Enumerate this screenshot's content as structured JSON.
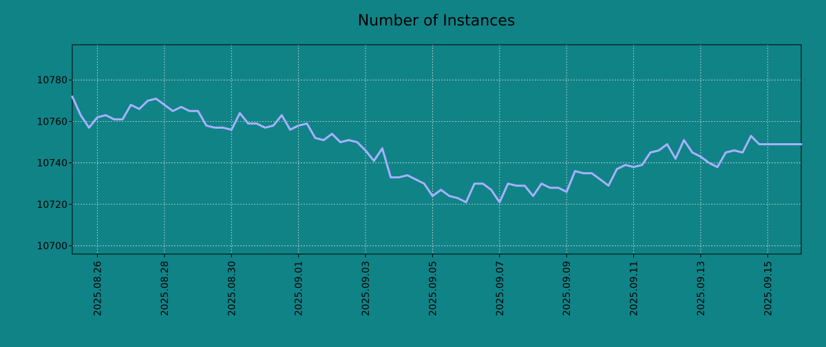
{
  "colors": {
    "background": "#108387",
    "line": "#a7b1ff",
    "grid": "#cfd6d6",
    "axis": "#000000"
  },
  "chart_data": {
    "type": "line",
    "title": "Number of Instances",
    "xlabel": "",
    "ylabel": "",
    "x_type": "date",
    "x_tick_labels": [
      "2025.08.26",
      "2025.08.28",
      "2025.08.30",
      "2025.09.01",
      "2025.09.03",
      "2025.09.05",
      "2025.09.07",
      "2025.09.09",
      "2025.09.11",
      "2025.09.13",
      "2025.09.15"
    ],
    "y_tick_labels": [
      "10700",
      "10720",
      "10740",
      "10760",
      "10780"
    ],
    "xlim": [
      "2025-08-25 06:00",
      "2025-09-16 00:00"
    ],
    "ylim": [
      10696,
      10797
    ],
    "grid": true,
    "legend": "none",
    "series": [
      {
        "x": [
          "2025-08-25 06:00",
          "2025-08-25 12:00",
          "2025-08-25 18:00",
          "2025-08-26 00:00",
          "2025-08-26 06:00",
          "2025-08-26 12:00",
          "2025-08-26 18:00",
          "2025-08-27 00:00",
          "2025-08-27 06:00",
          "2025-08-27 12:00",
          "2025-08-27 18:00",
          "2025-08-28 00:00",
          "2025-08-28 06:00",
          "2025-08-28 12:00",
          "2025-08-28 18:00",
          "2025-08-29 00:00",
          "2025-08-29 06:00",
          "2025-08-29 12:00",
          "2025-08-29 18:00",
          "2025-08-30 00:00",
          "2025-08-30 06:00",
          "2025-08-30 12:00",
          "2025-08-30 18:00",
          "2025-08-31 00:00",
          "2025-08-31 06:00",
          "2025-08-31 12:00",
          "2025-08-31 18:00",
          "2025-09-01 00:00",
          "2025-09-01 06:00",
          "2025-09-01 12:00",
          "2025-09-01 18:00",
          "2025-09-02 00:00",
          "2025-09-02 06:00",
          "2025-09-02 12:00",
          "2025-09-02 18:00",
          "2025-09-03 00:00",
          "2025-09-03 06:00",
          "2025-09-03 12:00",
          "2025-09-03 18:00",
          "2025-09-04 00:00",
          "2025-09-04 06:00",
          "2025-09-04 12:00",
          "2025-09-04 18:00",
          "2025-09-05 00:00",
          "2025-09-05 06:00",
          "2025-09-05 12:00",
          "2025-09-05 18:00",
          "2025-09-06 00:00",
          "2025-09-06 06:00",
          "2025-09-06 12:00",
          "2025-09-06 18:00",
          "2025-09-07 00:00",
          "2025-09-07 06:00",
          "2025-09-07 12:00",
          "2025-09-07 18:00",
          "2025-09-08 00:00",
          "2025-09-08 06:00",
          "2025-09-08 12:00",
          "2025-09-08 18:00",
          "2025-09-09 00:00",
          "2025-09-09 06:00",
          "2025-09-09 12:00",
          "2025-09-09 18:00",
          "2025-09-10 00:00",
          "2025-09-10 06:00",
          "2025-09-10 12:00",
          "2025-09-10 18:00",
          "2025-09-11 00:00",
          "2025-09-11 06:00",
          "2025-09-11 12:00",
          "2025-09-11 18:00",
          "2025-09-12 00:00",
          "2025-09-12 06:00",
          "2025-09-12 12:00",
          "2025-09-12 18:00",
          "2025-09-13 00:00",
          "2025-09-13 06:00",
          "2025-09-13 12:00",
          "2025-09-13 18:00",
          "2025-09-14 00:00",
          "2025-09-14 06:00",
          "2025-09-14 12:00",
          "2025-09-14 18:00",
          "2025-09-15 00:00",
          "2025-09-15 06:00",
          "2025-09-15 12:00",
          "2025-09-15 18:00",
          "2025-09-16 00:00"
        ],
        "y": [
          10772,
          10763,
          10757,
          10762,
          10763,
          10761,
          10761,
          10768,
          10766,
          10770,
          10771,
          10768,
          10765,
          10767,
          10765,
          10765,
          10758,
          10757,
          10757,
          10756,
          10764,
          10759,
          10759,
          10757,
          10758,
          10763,
          10756,
          10758,
          10759,
          10752,
          10751,
          10754,
          10750,
          10751,
          10750,
          10746,
          10741,
          10747,
          10733,
          10733,
          10734,
          10732,
          10730,
          10724,
          10727,
          10724,
          10723,
          10721,
          10730,
          10730,
          10727,
          10721,
          10730,
          10729,
          10729,
          10724,
          10730,
          10728,
          10728,
          10726,
          10736,
          10735,
          10735,
          10732,
          10729,
          10737,
          10739,
          10738,
          10739,
          10745,
          10746,
          10749,
          10742,
          10751,
          10745,
          10743,
          10740,
          10738,
          10745,
          10746,
          10745,
          10753,
          10749,
          10749,
          10749,
          10749,
          10749,
          10749
        ]
      }
    ]
  }
}
